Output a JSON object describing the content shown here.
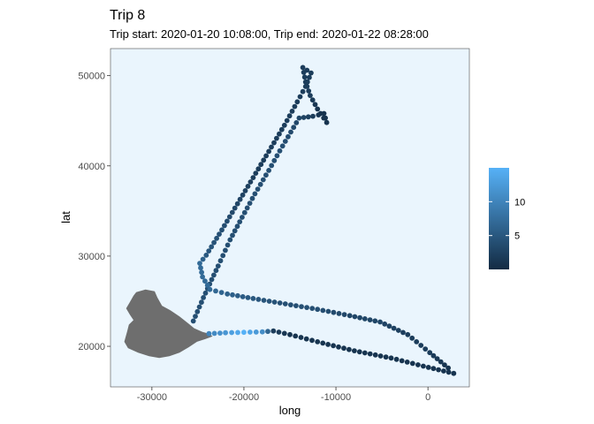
{
  "chart_data": {
    "type": "scatter",
    "title": "Trip 8",
    "subtitle": "Trip start: 2020-01-20 10:08:00, Trip end: 2020-01-22 08:28:00",
    "xlabel": "long",
    "ylabel": "lat",
    "xlim": [
      -34500,
      4500
    ],
    "ylim": [
      15500,
      53000
    ],
    "x_ticks": [
      -30000,
      -20000,
      -10000,
      0
    ],
    "x_tick_labels": [
      "-30000",
      "-20000",
      "-10000",
      "0"
    ],
    "y_ticks": [
      20000,
      30000,
      40000,
      50000
    ],
    "y_tick_labels": [
      "20000",
      "30000",
      "40000",
      "50000"
    ],
    "grid": false,
    "panel_background": "#eaf5fd",
    "land_color": "#6e6e6e",
    "legend": {
      "placement": "right",
      "range": [
        0,
        15
      ],
      "ticks": [
        5,
        10
      ],
      "tick_labels": [
        "5",
        "10"
      ],
      "color_low": "#132b43",
      "color_high": "#56b1f7"
    },
    "land_outline": [
      [
        -31700,
        26000
      ],
      [
        -30700,
        26300
      ],
      [
        -29700,
        26100
      ],
      [
        -29400,
        25400
      ],
      [
        -28900,
        24500
      ],
      [
        -28000,
        24000
      ],
      [
        -27000,
        23300
      ],
      [
        -26000,
        22500
      ],
      [
        -25400,
        22000
      ],
      [
        -24500,
        21600
      ],
      [
        -23800,
        21400
      ],
      [
        -23400,
        21100
      ],
      [
        -24200,
        20800
      ],
      [
        -25100,
        20500
      ],
      [
        -26000,
        19900
      ],
      [
        -27000,
        19300
      ],
      [
        -28100,
        18900
      ],
      [
        -29200,
        18700
      ],
      [
        -30300,
        18900
      ],
      [
        -31500,
        19300
      ],
      [
        -32600,
        19800
      ],
      [
        -33000,
        20500
      ],
      [
        -32700,
        21600
      ],
      [
        -32500,
        22400
      ],
      [
        -32000,
        22900
      ],
      [
        -32400,
        23500
      ],
      [
        -32800,
        24200
      ],
      [
        -32400,
        24900
      ],
      [
        -32000,
        25600
      ]
    ],
    "track": [
      [
        -25500,
        22800,
        4
      ],
      [
        -24400,
        25400,
        4
      ],
      [
        -23500,
        27400,
        4
      ],
      [
        -22800,
        28900,
        4
      ],
      [
        -21500,
        31800,
        4
      ],
      [
        -20200,
        34300,
        4
      ],
      [
        -18800,
        36900,
        4
      ],
      [
        -17300,
        39500,
        4
      ],
      [
        -15800,
        42200,
        4
      ],
      [
        -14000,
        45300,
        3
      ],
      [
        -12500,
        45500,
        2
      ],
      [
        -11300,
        45800,
        1
      ],
      [
        -11000,
        44800,
        1
      ],
      [
        -12000,
        46300,
        1
      ],
      [
        -12800,
        47800,
        2
      ],
      [
        -13300,
        49300,
        2
      ],
      [
        -13600,
        50900,
        2
      ],
      [
        -12700,
        50300,
        2
      ],
      [
        -13300,
        48800,
        2
      ],
      [
        -14200,
        47100,
        2
      ],
      [
        -15600,
        44500,
        2
      ],
      [
        -17300,
        41600,
        2
      ],
      [
        -19000,
        38700,
        2
      ],
      [
        -20700,
        35800,
        3
      ],
      [
        -22400,
        32900,
        4
      ],
      [
        -24100,
        30100,
        5
      ],
      [
        -24800,
        29200,
        7
      ],
      [
        -24500,
        27700,
        7
      ],
      [
        -23700,
        26300,
        7
      ],
      [
        -21800,
        25800,
        6
      ],
      [
        -19000,
        25300,
        5
      ],
      [
        -15500,
        24700,
        4
      ],
      [
        -12000,
        24100,
        4
      ],
      [
        -8500,
        23400,
        3
      ],
      [
        -5200,
        22700,
        3
      ],
      [
        -2200,
        21300,
        2
      ],
      [
        200,
        19300,
        2
      ],
      [
        2200,
        17600,
        1
      ],
      [
        2800,
        17000,
        1
      ],
      [
        -500,
        17800,
        1
      ],
      [
        -4000,
        18700,
        1
      ],
      [
        -8000,
        19500,
        1
      ],
      [
        -12000,
        20500,
        1
      ],
      [
        -15000,
        21300,
        1
      ],
      [
        -16800,
        21700,
        2
      ],
      [
        -18000,
        21600,
        11
      ],
      [
        -20000,
        21550,
        15
      ],
      [
        -22000,
        21500,
        12
      ],
      [
        -23800,
        21400,
        10
      ]
    ]
  }
}
